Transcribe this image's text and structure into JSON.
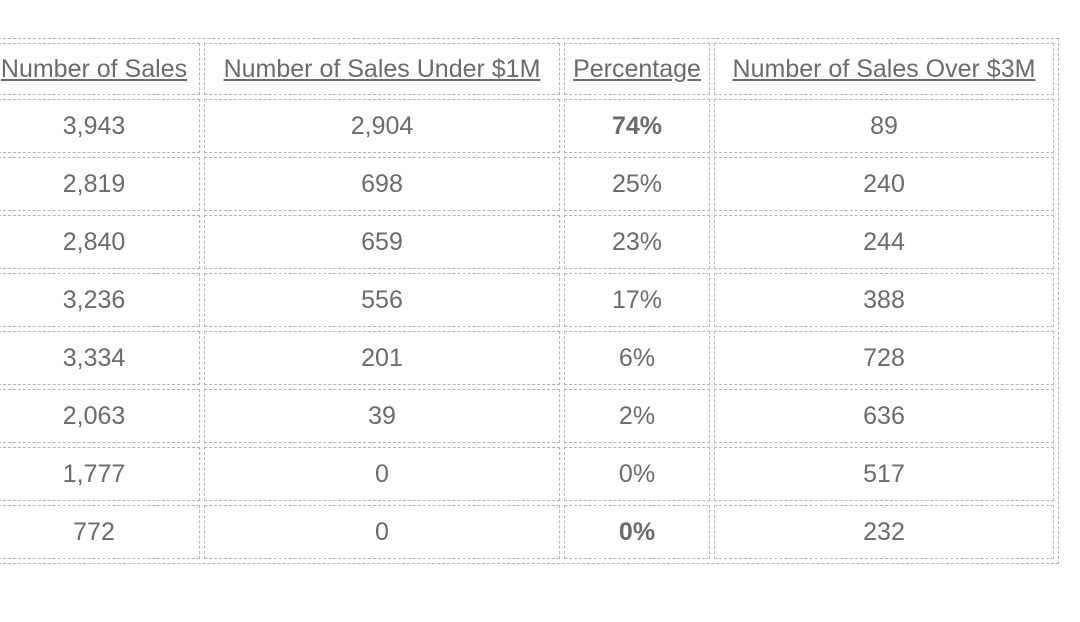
{
  "table": {
    "headers": [
      "Number of Sales",
      "Number of Sales Under $1M",
      "Percentage",
      "Number of Sales Over $3M"
    ],
    "rows": [
      [
        "3,943",
        "2,904",
        "74%",
        "89"
      ],
      [
        "2,819",
        "698",
        "25%",
        "240"
      ],
      [
        "2,840",
        "659",
        "23%",
        "244"
      ],
      [
        "3,236",
        "556",
        "17%",
        "388"
      ],
      [
        "3,334",
        "201",
        "6%",
        "728"
      ],
      [
        "2,063",
        "39",
        "2%",
        "636"
      ],
      [
        "1,777",
        "0",
        "0%",
        "517"
      ],
      [
        "772",
        "0",
        "0%",
        "232"
      ]
    ]
  }
}
